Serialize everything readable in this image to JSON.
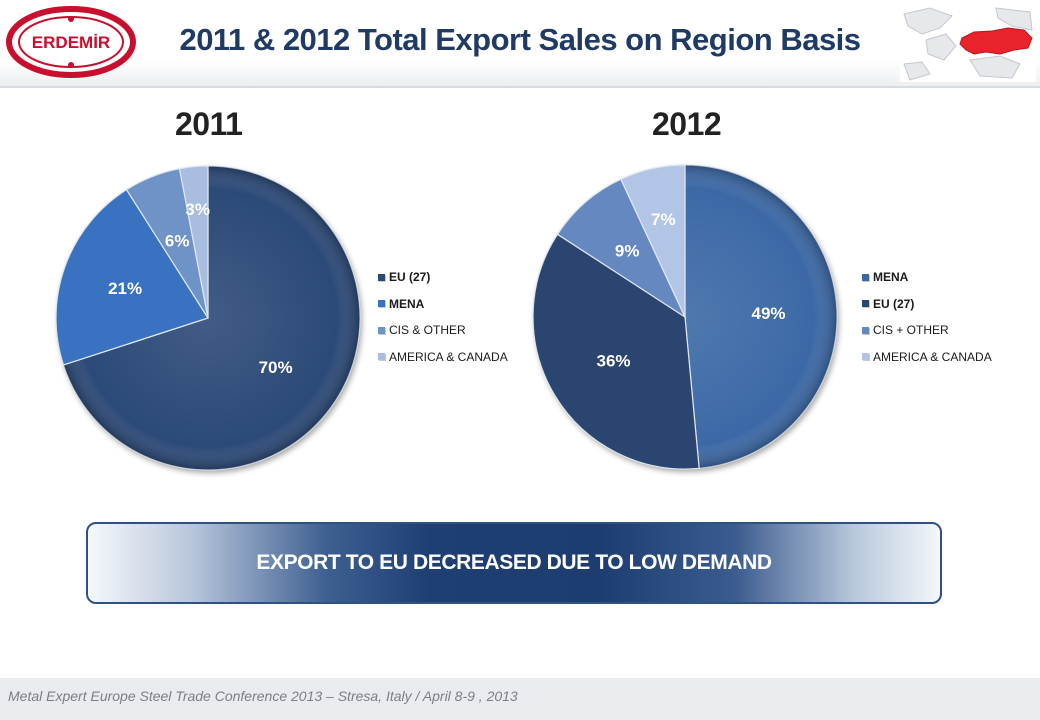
{
  "header": {
    "title": "2011 & 2012 Total Export Sales on Region Basis",
    "logo_text": "ERDEMİR"
  },
  "colors": {
    "eu": "#2c4a78",
    "mena": "#3a72c2",
    "cis": "#6f92c7",
    "america": "#a9bde0",
    "mena_2012": "#3c69a6",
    "eu_2012": "#2a4670",
    "cis_2012": "#6688c0",
    "america_2012": "#b3c5e6",
    "map_turkey": "#e8232c"
  },
  "chart_data": [
    {
      "type": "pie",
      "title": "2011",
      "series": [
        {
          "name": "EU (27)",
          "value": 70,
          "label": "70%"
        },
        {
          "name": "MENA",
          "value": 21,
          "label": "21%"
        },
        {
          "name": "CIS & OTHER",
          "value": 6,
          "label": "6%"
        },
        {
          "name": "AMERICA & CANADA",
          "value": 3,
          "label": "3%"
        }
      ],
      "legend_position": "right"
    },
    {
      "type": "pie",
      "title": "2012",
      "series": [
        {
          "name": "MENA",
          "value": 49,
          "label": "49%"
        },
        {
          "name": "EU (27)",
          "value": 36,
          "label": "36%"
        },
        {
          "name": "CIS + OTHER",
          "value": 9,
          "label": "9%"
        },
        {
          "name": "AMERICA & CANADA",
          "value": 7,
          "label": "7%"
        }
      ],
      "legend_position": "right"
    }
  ],
  "banner": {
    "text": "EXPORT TO EU DECREASED DUE TO LOW DEMAND"
  },
  "footer": {
    "text": "Metal Expert Europe Steel Trade Conference 2013 – Stresa, Italy / April 8-9 , 2013"
  }
}
